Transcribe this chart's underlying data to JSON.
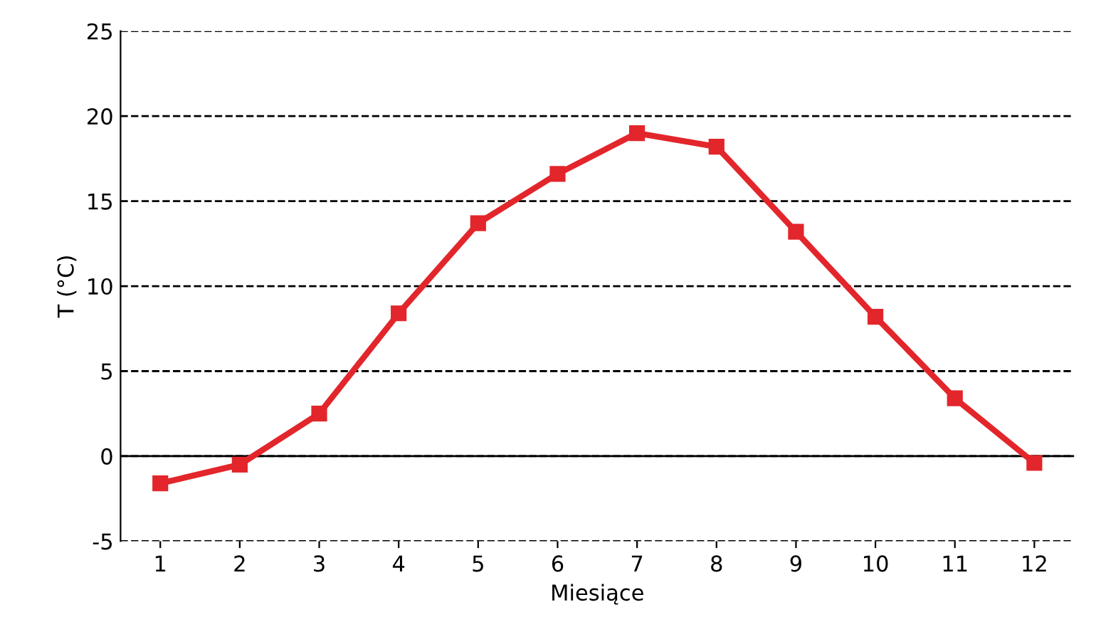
{
  "chart_data": {
    "type": "line",
    "xlabel": "Miesiące",
    "ylabel": "T (°C)",
    "categories": [
      "1",
      "2",
      "3",
      "4",
      "5",
      "6",
      "7",
      "8",
      "9",
      "10",
      "11",
      "12"
    ],
    "series": [
      {
        "color": "#e2262b",
        "values": [
          -1.6,
          -0.5,
          2.5,
          8.4,
          13.7,
          16.6,
          19.0,
          18.2,
          13.2,
          8.2,
          3.4,
          -0.4
        ]
      }
    ],
    "ylim": [
      -5,
      25
    ],
    "yticks": [
      -5,
      0,
      5,
      10,
      15,
      20,
      25
    ],
    "grid": "y",
    "marker": "square",
    "line_style": "solid",
    "ref_lines": [
      {
        "axis": "y",
        "value": 0,
        "color": "#000000",
        "line_style": "solid"
      }
    ]
  }
}
